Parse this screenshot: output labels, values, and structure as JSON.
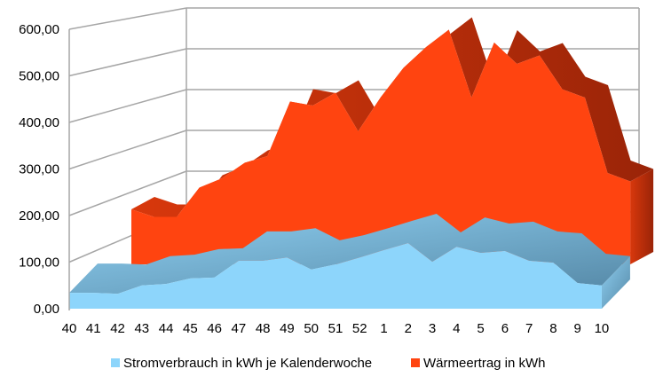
{
  "chart_data": {
    "type": "area",
    "three_d": true,
    "categories": [
      "40",
      "41",
      "42",
      "43",
      "44",
      "45",
      "46",
      "47",
      "48",
      "49",
      "50",
      "51",
      "52",
      "1",
      "2",
      "3",
      "4",
      "5",
      "6",
      "7",
      "8",
      "9",
      "10"
    ],
    "y_ticks": [
      "0,00",
      "100,00",
      "200,00",
      "300,00",
      "400,00",
      "500,00",
      "600,00"
    ],
    "ylim": [
      0,
      600
    ],
    "grid": true,
    "legend_position": "bottom",
    "series": [
      {
        "name": "Stromverbrauch in kWh je Kalenderwoche",
        "color": "#8dd5fb",
        "values": [
          34,
          34,
          32,
          50,
          53,
          65,
          67,
          103,
          103,
          110,
          84,
          95,
          110,
          126,
          141,
          101,
          133,
          120,
          124,
          103,
          99,
          55,
          50
        ]
      },
      {
        "name": "Wärmeertrag in kWh",
        "color": "#ff4410",
        "values": [
          124,
          107,
          107,
          173,
          194,
          229,
          244,
          367,
          358,
          387,
          300,
          377,
          443,
          490,
          529,
          376,
          500,
          452,
          471,
          395,
          376,
          206,
          187
        ]
      }
    ]
  }
}
